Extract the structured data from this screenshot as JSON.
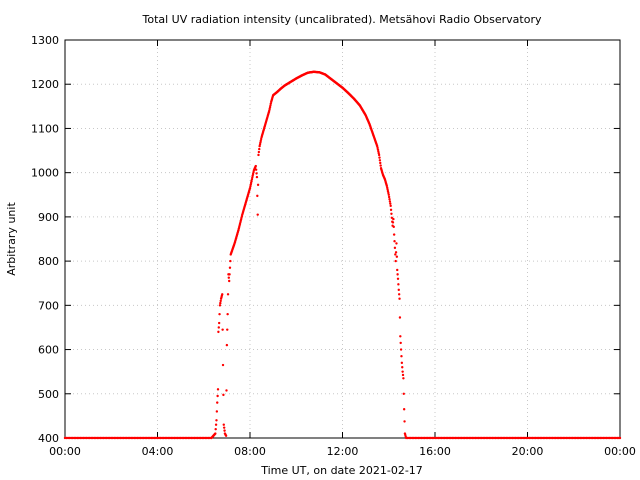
{
  "chart_data": {
    "type": "scatter",
    "title": "Total UV radiation intensity (uncalibrated). Metsähovi Radio Observatory",
    "xlabel": "Time UT, on date 2021-02-17",
    "ylabel": "Arbitrary unit",
    "xlim": [
      "00:00",
      "24:00"
    ],
    "ylim": [
      400,
      1300
    ],
    "grid": true,
    "x_ticks": [
      "00:00",
      "04:00",
      "08:00",
      "12:00",
      "16:00",
      "20:00",
      "00:00"
    ],
    "y_ticks": [
      400,
      500,
      600,
      700,
      800,
      900,
      1000,
      1100,
      1200,
      1300
    ],
    "marker_color": "#ff0000",
    "series": [
      {
        "points": [
          [
            "00:00",
            400
          ],
          [
            "06:20",
            400
          ],
          [
            "06:30",
            410
          ],
          [
            "06:33",
            440
          ],
          [
            "06:35",
            480
          ],
          [
            "06:37",
            510
          ],
          [
            "06:38",
            640
          ],
          [
            "06:40",
            660
          ],
          [
            "06:42",
            700
          ],
          [
            "06:45",
            715
          ],
          [
            "06:48",
            725
          ],
          [
            "06:50",
            565
          ],
          [
            "06:52",
            430
          ],
          [
            "06:55",
            410
          ],
          [
            "06:58",
            405
          ],
          [
            "07:00",
            610
          ],
          [
            "07:02",
            680
          ],
          [
            "07:04",
            770
          ],
          [
            "07:06",
            755
          ],
          [
            "07:10",
            815
          ],
          [
            "07:20",
            840
          ],
          [
            "07:30",
            870
          ],
          [
            "07:40",
            905
          ],
          [
            "07:50",
            935
          ],
          [
            "08:00",
            965
          ],
          [
            "08:05",
            985
          ],
          [
            "08:10",
            1005
          ],
          [
            "08:15",
            1015
          ],
          [
            "08:18",
            990
          ],
          [
            "08:20",
            905
          ],
          [
            "08:22",
            1040
          ],
          [
            "08:25",
            1060
          ],
          [
            "08:30",
            1080
          ],
          [
            "08:35",
            1095
          ],
          [
            "08:40",
            1110
          ],
          [
            "08:45",
            1125
          ],
          [
            "08:50",
            1140
          ],
          [
            "08:55",
            1160
          ],
          [
            "09:00",
            1175
          ],
          [
            "09:10",
            1182
          ],
          [
            "09:20",
            1190
          ],
          [
            "09:30",
            1197
          ],
          [
            "09:45",
            1205
          ],
          [
            "10:00",
            1213
          ],
          [
            "10:15",
            1220
          ],
          [
            "10:30",
            1226
          ],
          [
            "10:45",
            1228
          ],
          [
            "11:00",
            1227
          ],
          [
            "11:15",
            1222
          ],
          [
            "11:30",
            1212
          ],
          [
            "11:45",
            1202
          ],
          [
            "12:00",
            1192
          ],
          [
            "12:15",
            1180
          ],
          [
            "12:30",
            1167
          ],
          [
            "12:45",
            1152
          ],
          [
            "13:00",
            1130
          ],
          [
            "13:10",
            1110
          ],
          [
            "13:20",
            1085
          ],
          [
            "13:30",
            1060
          ],
          [
            "13:35",
            1040
          ],
          [
            "13:40",
            1010
          ],
          [
            "13:45",
            995
          ],
          [
            "13:50",
            985
          ],
          [
            "13:55",
            970
          ],
          [
            "14:00",
            950
          ],
          [
            "14:05",
            925
          ],
          [
            "14:10",
            880
          ],
          [
            "14:12",
            895
          ],
          [
            "14:14",
            860
          ],
          [
            "14:16",
            830
          ],
          [
            "14:18",
            800
          ],
          [
            "14:20",
            840
          ],
          [
            "14:22",
            780
          ],
          [
            "14:24",
            760
          ],
          [
            "14:26",
            735
          ],
          [
            "14:28",
            715
          ],
          [
            "14:30",
            630
          ],
          [
            "14:32",
            600
          ],
          [
            "14:34",
            570
          ],
          [
            "14:36",
            550
          ],
          [
            "14:38",
            535
          ],
          [
            "14:40",
            465
          ],
          [
            "14:42",
            410
          ],
          [
            "14:45",
            400
          ],
          [
            "24:00",
            400
          ]
        ]
      }
    ]
  }
}
